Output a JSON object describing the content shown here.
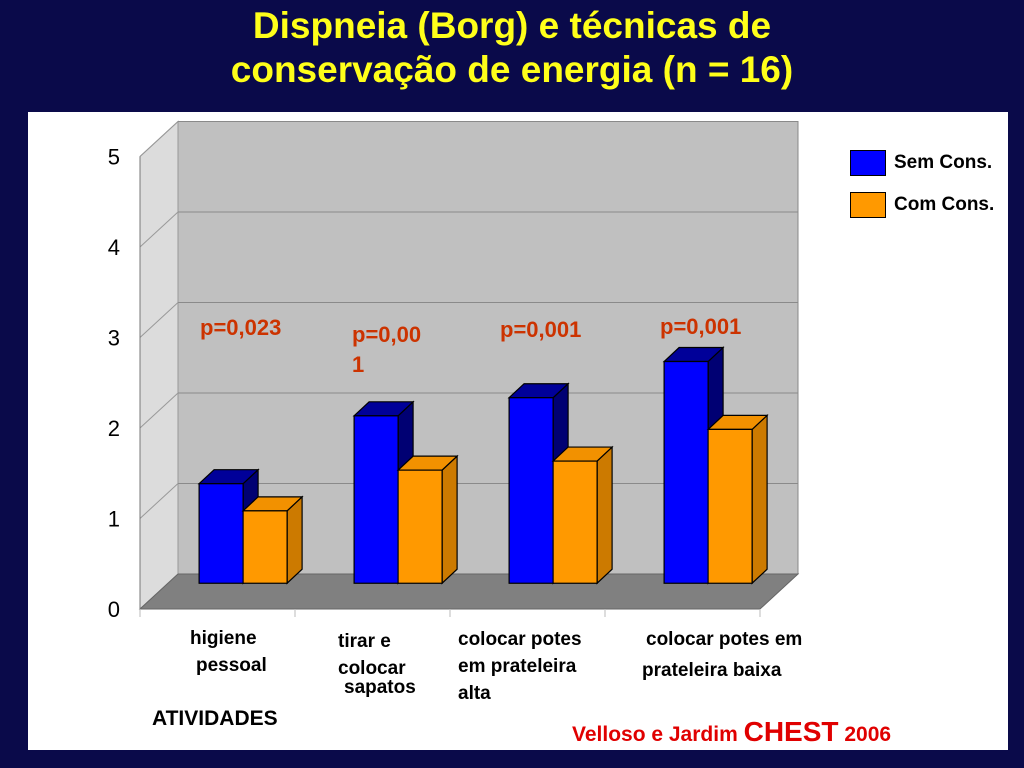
{
  "title": {
    "line1": "Dispneia (Borg) e técnicas de",
    "line2": "conservação de energia (n = 16)"
  },
  "source": {
    "authors": "Velloso e Jardim",
    "journal": "CHEST",
    "year": "2006"
  },
  "chart_data": {
    "type": "bar",
    "style": "3d-clustered",
    "xlabel": "ATIVIDADES",
    "ylabel": "",
    "ylim": [
      0,
      5
    ],
    "yticks": [
      "0",
      "1",
      "2",
      "3",
      "4",
      "5"
    ],
    "grid": true,
    "legend_position": "top-right",
    "categories": [
      [
        "higiene",
        "pessoal"
      ],
      [
        "tirar e",
        "colocar",
        "sapatos"
      ],
      [
        "colocar potes",
        "em prateleira",
        "alta"
      ],
      [
        "colocar potes em",
        "prateleira baixa"
      ]
    ],
    "series": [
      {
        "name": "Sem Cons.",
        "color": "#0000ff",
        "values": [
          1.1,
          1.85,
          2.05,
          2.45
        ]
      },
      {
        "name": "Com Cons.",
        "color": "#ff9900",
        "values": [
          0.8,
          1.25,
          1.35,
          1.7
        ]
      }
    ],
    "annotations": [
      [
        "p=0,023"
      ],
      [
        "p=0,00",
        "1"
      ],
      [
        "p=0,001"
      ],
      [
        "p=0,001"
      ]
    ]
  }
}
